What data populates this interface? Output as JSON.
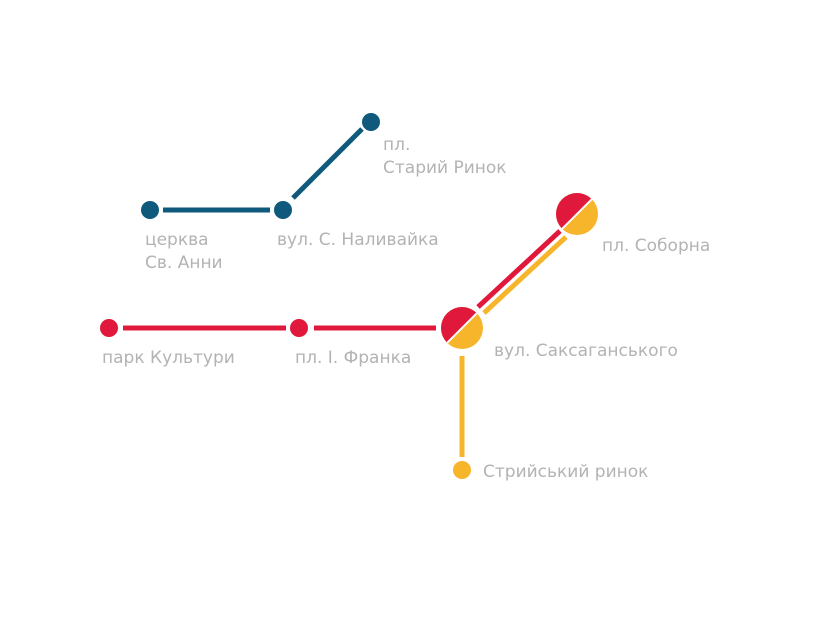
{
  "colors": {
    "blue_line": "#0f5a7c",
    "red_line": "#e0193c",
    "yellow_line": "#f7b52b",
    "label_text": "#b3b3b3",
    "background": "#ffffff"
  },
  "lines": {
    "blue": {
      "stations": [
        {
          "name_lines": [
            "церква",
            "Св. Анни"
          ]
        },
        {
          "name_lines": [
            "вул. С. Наливайка"
          ]
        },
        {
          "name_lines": [
            "пл.",
            "Старий Ринок"
          ]
        }
      ]
    },
    "red": {
      "stations": [
        {
          "name_lines": [
            "парк Культури"
          ]
        },
        {
          "name_lines": [
            "пл. І. Франка"
          ]
        }
      ]
    },
    "yellow": {
      "stations": [
        {
          "name_lines": [
            "Стрийський ринок"
          ]
        }
      ]
    },
    "interchanges": [
      {
        "name_lines": [
          "вул. Саксаганського"
        ],
        "lines": [
          "red",
          "yellow"
        ]
      },
      {
        "name_lines": [
          "пл. Соборна"
        ],
        "lines": [
          "red",
          "yellow"
        ]
      }
    ]
  }
}
